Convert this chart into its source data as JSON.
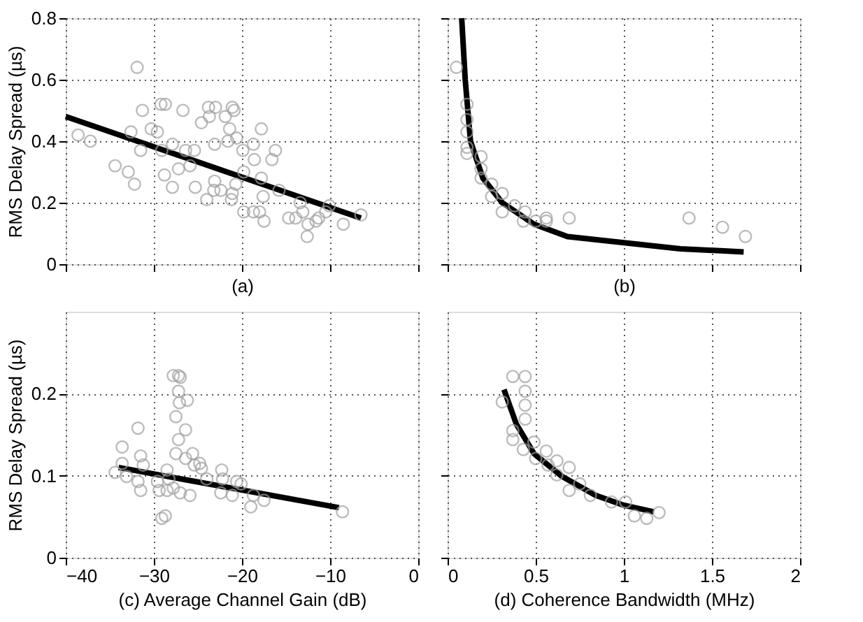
{
  "chart_data": [
    {
      "type": "scatter",
      "ylabel": "RMS Delay Spread (µs)",
      "xlabel": "(a)",
      "xlim": [
        -40,
        0
      ],
      "xticks": [
        -40,
        -30,
        -20,
        -10,
        0
      ],
      "ylim": [
        0,
        0.8
      ],
      "yticks": [
        0,
        0.2,
        0.4,
        0.6,
        0.8
      ],
      "grid": true,
      "tick_labels": "y",
      "series": [
        {
          "marker": "circle",
          "color": "#a0a0a0",
          "x": [
            -38.6,
            -37.2,
            -31.9,
            -34.4,
            -32.9,
            -32.2,
            -32.6,
            -31.3,
            -31.5,
            -30.3,
            -29.6,
            -29.2,
            -28.7,
            -29.1,
            -28.8,
            -27.9,
            -27.9,
            -27.2,
            -26.7,
            -26.4,
            -25.9,
            -25.4,
            -25.3,
            -24.6,
            -24.0,
            -23.8,
            -23.7,
            -23.0,
            -23.1,
            -23.1,
            -23.2,
            -22.4,
            -21.6,
            -21.9,
            -21.4,
            -21.1,
            -20.9,
            -21.2,
            -21.1,
            -20.6,
            -20.7,
            -19.8,
            -19.9,
            -19.8,
            -18.7,
            -18.7,
            -18.6,
            -18.0,
            -17.8,
            -17.8,
            -17.6,
            -17.5,
            -16.6,
            -16.2,
            -15.8,
            -14.7,
            -13.9,
            -13.4,
            -13.1,
            -12.6,
            -12.5,
            -11.6,
            -11.3,
            -10.5,
            -10.1,
            -8.5,
            -6.5
          ],
          "values": [
            0.42,
            0.4,
            0.64,
            0.32,
            0.3,
            0.26,
            0.43,
            0.5,
            0.37,
            0.44,
            0.43,
            0.52,
            0.52,
            0.37,
            0.29,
            0.25,
            0.39,
            0.31,
            0.5,
            0.37,
            0.32,
            0.37,
            0.25,
            0.46,
            0.21,
            0.51,
            0.48,
            0.51,
            0.39,
            0.27,
            0.24,
            0.24,
            0.4,
            0.48,
            0.44,
            0.51,
            0.5,
            0.21,
            0.23,
            0.41,
            0.26,
            0.17,
            0.37,
            0.3,
            0.17,
            0.39,
            0.34,
            0.17,
            0.44,
            0.28,
            0.22,
            0.14,
            0.34,
            0.37,
            0.24,
            0.15,
            0.15,
            0.2,
            0.17,
            0.09,
            0.13,
            0.14,
            0.15,
            0.17,
            0.19,
            0.13,
            0.16
          ]
        },
        {
          "type": "line",
          "color": "#000000",
          "line_style": "solid",
          "x": [
            -40,
            -6.5
          ],
          "values": [
            0.48,
            0.15
          ]
        }
      ]
    },
    {
      "type": "scatter",
      "xlim": [
        0,
        2
      ],
      "xticks": [
        0,
        0.5,
        1,
        1.5,
        2
      ],
      "ylim": [
        0,
        0.8
      ],
      "yticks": [
        0,
        0.2,
        0.4,
        0.6,
        0.8
      ],
      "xlabel": "(b)",
      "grid": true,
      "tick_labels": false,
      "series": [
        {
          "marker": "circle",
          "color": "#a0a0a0",
          "x": [
            0.05,
            0.11,
            0.11,
            0.11,
            0.11,
            0.11,
            0.19,
            0.19,
            0.19,
            0.25,
            0.25,
            0.31,
            0.31,
            0.38,
            0.44,
            0.43,
            0.5,
            0.56,
            0.56,
            0.69,
            1.37,
            1.56,
            1.69
          ],
          "values": [
            0.64,
            0.52,
            0.47,
            0.43,
            0.38,
            0.36,
            0.35,
            0.31,
            0.28,
            0.26,
            0.22,
            0.23,
            0.17,
            0.19,
            0.17,
            0.14,
            0.14,
            0.15,
            0.14,
            0.15,
            0.15,
            0.12,
            0.09
          ]
        },
        {
          "type": "line",
          "color": "#000000",
          "line_style": "solid",
          "x": [
            0.08,
            0.1,
            0.13,
            0.2,
            0.31,
            0.49,
            0.68,
            1.0,
            1.32,
            1.68
          ],
          "values": [
            0.8,
            0.6,
            0.4,
            0.28,
            0.2,
            0.13,
            0.09,
            0.07,
            0.05,
            0.04
          ]
        }
      ]
    },
    {
      "type": "scatter",
      "ylabel": "RMS Delay Spread (µs)",
      "xlabel": "(c) Average Channel Gain (dB)",
      "xlim": [
        -40,
        0
      ],
      "xticks": [
        -40,
        -30,
        -20,
        -10,
        0
      ],
      "ylim": [
        0,
        0.3
      ],
      "yticks": [
        0,
        0.1,
        0.2
      ],
      "grid": true,
      "series": [
        {
          "marker": "circle",
          "color": "#a0a0a0",
          "x": [
            -34.4,
            -33.6,
            -33.6,
            -33.1,
            -31.8,
            -31.5,
            -31.2,
            -31.5,
            -31.8,
            -29.6,
            -29.4,
            -29.1,
            -28.7,
            -28.5,
            -28.5,
            -28.3,
            -27.8,
            -27.2,
            -27.0,
            -27.2,
            -27.1,
            -27.5,
            -27.2,
            -27.5,
            -27.8,
            -27.0,
            -26.4,
            -26.2,
            -26.4,
            -25.9,
            -25.6,
            -25.4,
            -24.8,
            -24.6,
            -24.0,
            -22.3,
            -22.2,
            -22.4,
            -21.1,
            -20.6,
            -20.1,
            -19.0,
            -18.7,
            -17.5,
            -8.6
          ],
          "values": [
            0.104,
            0.135,
            0.115,
            0.099,
            0.158,
            0.124,
            0.113,
            0.082,
            0.093,
            0.093,
            0.082,
            0.048,
            0.051,
            0.082,
            0.107,
            0.096,
            0.222,
            0.222,
            0.22,
            0.203,
            0.189,
            0.172,
            0.144,
            0.127,
            0.085,
            0.079,
            0.156,
            0.192,
            0.121,
            0.076,
            0.127,
            0.113,
            0.115,
            0.109,
            0.096,
            0.107,
            0.096,
            0.079,
            0.076,
            0.093,
            0.09,
            0.062,
            0.076,
            0.07,
            0.056
          ]
        },
        {
          "type": "line",
          "color": "#000000",
          "line_style": "solid",
          "x": [
            -34,
            -9
          ],
          "values": [
            0.11,
            0.061
          ]
        }
      ]
    },
    {
      "type": "scatter",
      "xlabel": "(d) Coherence Bandwidth (MHz)",
      "xlim": [
        0,
        2
      ],
      "xticks": [
        0,
        0.5,
        1,
        1.5,
        2
      ],
      "ylim": [
        0,
        0.3
      ],
      "yticks": [
        0,
        0.1,
        0.2
      ],
      "grid": true,
      "tick_labels": "x",
      "series": [
        {
          "marker": "circle",
          "color": "#a0a0a0",
          "x": [
            0.31,
            0.37,
            0.44,
            0.44,
            0.44,
            0.44,
            0.37,
            0.37,
            0.43,
            0.49,
            0.5,
            0.56,
            0.57,
            0.62,
            0.62,
            0.69,
            0.69,
            0.75,
            0.81,
            0.93,
            1.01,
            1.06,
            1.13,
            1.2
          ],
          "values": [
            0.19,
            0.221,
            0.221,
            0.203,
            0.186,
            0.169,
            0.155,
            0.144,
            0.132,
            0.141,
            0.121,
            0.13,
            0.113,
            0.118,
            0.101,
            0.11,
            0.082,
            0.09,
            0.076,
            0.068,
            0.068,
            0.051,
            0.048,
            0.055
          ]
        },
        {
          "type": "line",
          "color": "#000000",
          "line_style": "solid",
          "x": [
            0.32,
            0.39,
            0.49,
            0.65,
            0.84,
            1.0,
            1.17
          ],
          "values": [
            0.205,
            0.163,
            0.127,
            0.099,
            0.076,
            0.064,
            0.056
          ]
        }
      ]
    }
  ]
}
